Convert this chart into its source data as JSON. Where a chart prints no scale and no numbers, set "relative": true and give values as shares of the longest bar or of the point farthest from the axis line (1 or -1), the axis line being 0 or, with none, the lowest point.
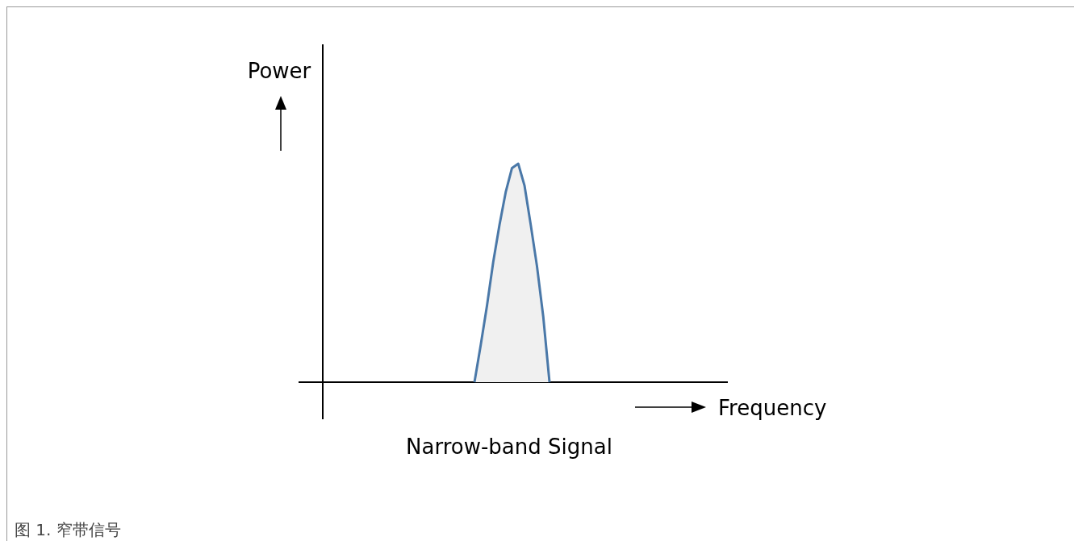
{
  "chart_data": {
    "type": "area",
    "relative": true,
    "title": "Narrow-band Signal",
    "annotations": [
      "Power",
      "Frequency",
      "图 1.  窄带信号"
    ],
    "categories": [
      null,
      null,
      null,
      null,
      null,
      null,
      null,
      null,
      null,
      null,
      null,
      null,
      null
    ],
    "series": [
      {
        "color": "#4a78a8",
        "values": [
          0,
          0.17,
          0.35,
          0.55,
          0.72,
          0.87,
          0.98,
          1,
          0.9,
          0.72,
          0.53,
          0.3,
          0
        ]
      }
    ],
    "marker": "none"
  }
}
